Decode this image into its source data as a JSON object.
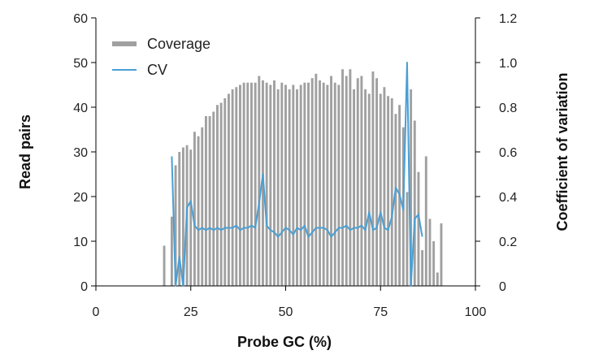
{
  "chart_data": {
    "type": "bar",
    "xlabel": "Probe GC (%)",
    "ylabel": "Read pairs",
    "y2label": "Coefficient of variation",
    "xlim": [
      0,
      100
    ],
    "ylim": [
      0,
      60
    ],
    "y2lim": [
      0,
      1.2
    ],
    "x_ticks": [
      0,
      25,
      50,
      75,
      100
    ],
    "y_ticks": [
      0,
      10,
      20,
      30,
      40,
      50,
      60
    ],
    "y2_ticks": [
      "0",
      "0.2",
      "0.4",
      "0.6",
      "0.8",
      "1.0",
      "1.2"
    ],
    "grid": false,
    "legend_position": "top-left",
    "colors": {
      "coverage": "#a0a0a0",
      "cv": "#4a9fd4",
      "axis": "#000000"
    },
    "series": [
      {
        "name": "Coverage",
        "kind": "bar",
        "axis": "left",
        "x": [
          18,
          20,
          21,
          22,
          23,
          24,
          25,
          26,
          27,
          28,
          29,
          30,
          31,
          32,
          33,
          34,
          35,
          36,
          37,
          38,
          39,
          40,
          41,
          42,
          43,
          44,
          45,
          46,
          47,
          48,
          49,
          50,
          51,
          52,
          53,
          54,
          55,
          56,
          57,
          58,
          59,
          60,
          61,
          62,
          63,
          64,
          65,
          66,
          67,
          68,
          69,
          70,
          71,
          72,
          73,
          74,
          75,
          76,
          77,
          78,
          79,
          80,
          81,
          82,
          83,
          84,
          85,
          86,
          87,
          88,
          89,
          90,
          91
        ],
        "values": [
          9,
          15.5,
          27,
          30,
          31,
          31.5,
          30.5,
          34.5,
          33.5,
          35.5,
          38,
          38,
          39,
          40.5,
          41,
          42,
          43,
          44,
          44.5,
          45,
          45.5,
          45.5,
          45.5,
          45.5,
          47,
          46,
          45.5,
          45,
          46,
          44,
          45.5,
          45,
          44,
          45,
          44,
          45,
          45.5,
          45.5,
          46.5,
          47.5,
          46,
          45.5,
          45,
          47,
          45.5,
          45,
          48.5,
          47,
          48.5,
          44,
          46.5,
          47,
          44,
          43,
          48,
          46.5,
          43,
          44.5,
          42.5,
          42,
          38.5,
          40.5,
          35.5,
          21,
          44,
          37,
          25.5,
          8,
          29,
          15,
          10,
          3,
          14
        ]
      },
      {
        "name": "CV",
        "kind": "line",
        "axis": "right",
        "x": [
          20,
          21,
          22,
          23,
          24,
          25,
          26,
          27,
          28,
          29,
          30,
          31,
          32,
          33,
          34,
          35,
          36,
          37,
          38,
          39,
          40,
          41,
          42,
          43,
          44,
          45,
          46,
          47,
          48,
          49,
          50,
          51,
          52,
          53,
          54,
          55,
          56,
          57,
          58,
          59,
          60,
          61,
          62,
          63,
          64,
          65,
          66,
          67,
          68,
          69,
          70,
          71,
          72,
          73,
          74,
          75,
          76,
          77,
          78,
          79,
          80,
          81,
          82,
          83,
          84,
          85,
          86
        ],
        "values": [
          0.58,
          0.0,
          0.13,
          0.0,
          0.35,
          0.38,
          0.27,
          0.25,
          0.26,
          0.25,
          0.26,
          0.25,
          0.26,
          0.25,
          0.26,
          0.26,
          0.26,
          0.27,
          0.25,
          0.26,
          0.26,
          0.27,
          0.26,
          0.37,
          0.5,
          0.27,
          0.25,
          0.24,
          0.22,
          0.24,
          0.26,
          0.25,
          0.23,
          0.26,
          0.25,
          0.27,
          0.22,
          0.24,
          0.26,
          0.26,
          0.26,
          0.25,
          0.22,
          0.24,
          0.26,
          0.26,
          0.27,
          0.25,
          0.26,
          0.26,
          0.27,
          0.25,
          0.33,
          0.25,
          0.26,
          0.33,
          0.26,
          0.25,
          0.31,
          0.44,
          0.41,
          0.34,
          1.0,
          0.0,
          0.3,
          0.32,
          0.22
        ]
      }
    ]
  }
}
